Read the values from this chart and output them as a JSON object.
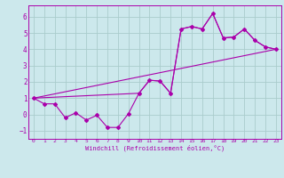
{
  "xlabel": "Windchill (Refroidissement éolien,°C)",
  "bg_color": "#cce8ec",
  "line_color": "#aa00aa",
  "grid_color": "#aacccc",
  "xlim": [
    -0.5,
    23.5
  ],
  "ylim": [
    -1.5,
    6.7
  ],
  "yticks": [
    -1,
    0,
    1,
    2,
    3,
    4,
    5,
    6
  ],
  "xticks": [
    0,
    1,
    2,
    3,
    4,
    5,
    6,
    7,
    8,
    9,
    10,
    11,
    12,
    13,
    14,
    15,
    16,
    17,
    18,
    19,
    20,
    21,
    22,
    23
  ],
  "series1_x": [
    0,
    1,
    2,
    3,
    4,
    5,
    6,
    7,
    8,
    9,
    10,
    11,
    12,
    13,
    14,
    15,
    16,
    17,
    18,
    19,
    20,
    21,
    22,
    23
  ],
  "series1_y": [
    1.0,
    0.65,
    0.65,
    -0.2,
    0.1,
    -0.35,
    -0.05,
    -0.8,
    -0.8,
    0.05,
    1.3,
    2.1,
    2.05,
    1.3,
    5.25,
    5.4,
    5.25,
    6.2,
    4.7,
    4.75,
    5.25,
    4.55,
    4.15,
    4.0
  ],
  "series2_x": [
    0,
    10,
    11,
    12,
    13,
    14,
    15,
    16,
    17,
    18,
    19,
    20,
    21,
    22,
    23
  ],
  "series2_y": [
    1.0,
    1.3,
    2.1,
    2.05,
    1.3,
    5.25,
    5.4,
    5.25,
    6.2,
    4.7,
    4.75,
    5.25,
    4.55,
    4.15,
    4.0
  ],
  "series3_x": [
    0,
    23
  ],
  "series3_y": [
    1.0,
    4.0
  ],
  "xlabel_fontsize": 5.0,
  "tick_fontsize_x": 4.5,
  "tick_fontsize_y": 5.5
}
